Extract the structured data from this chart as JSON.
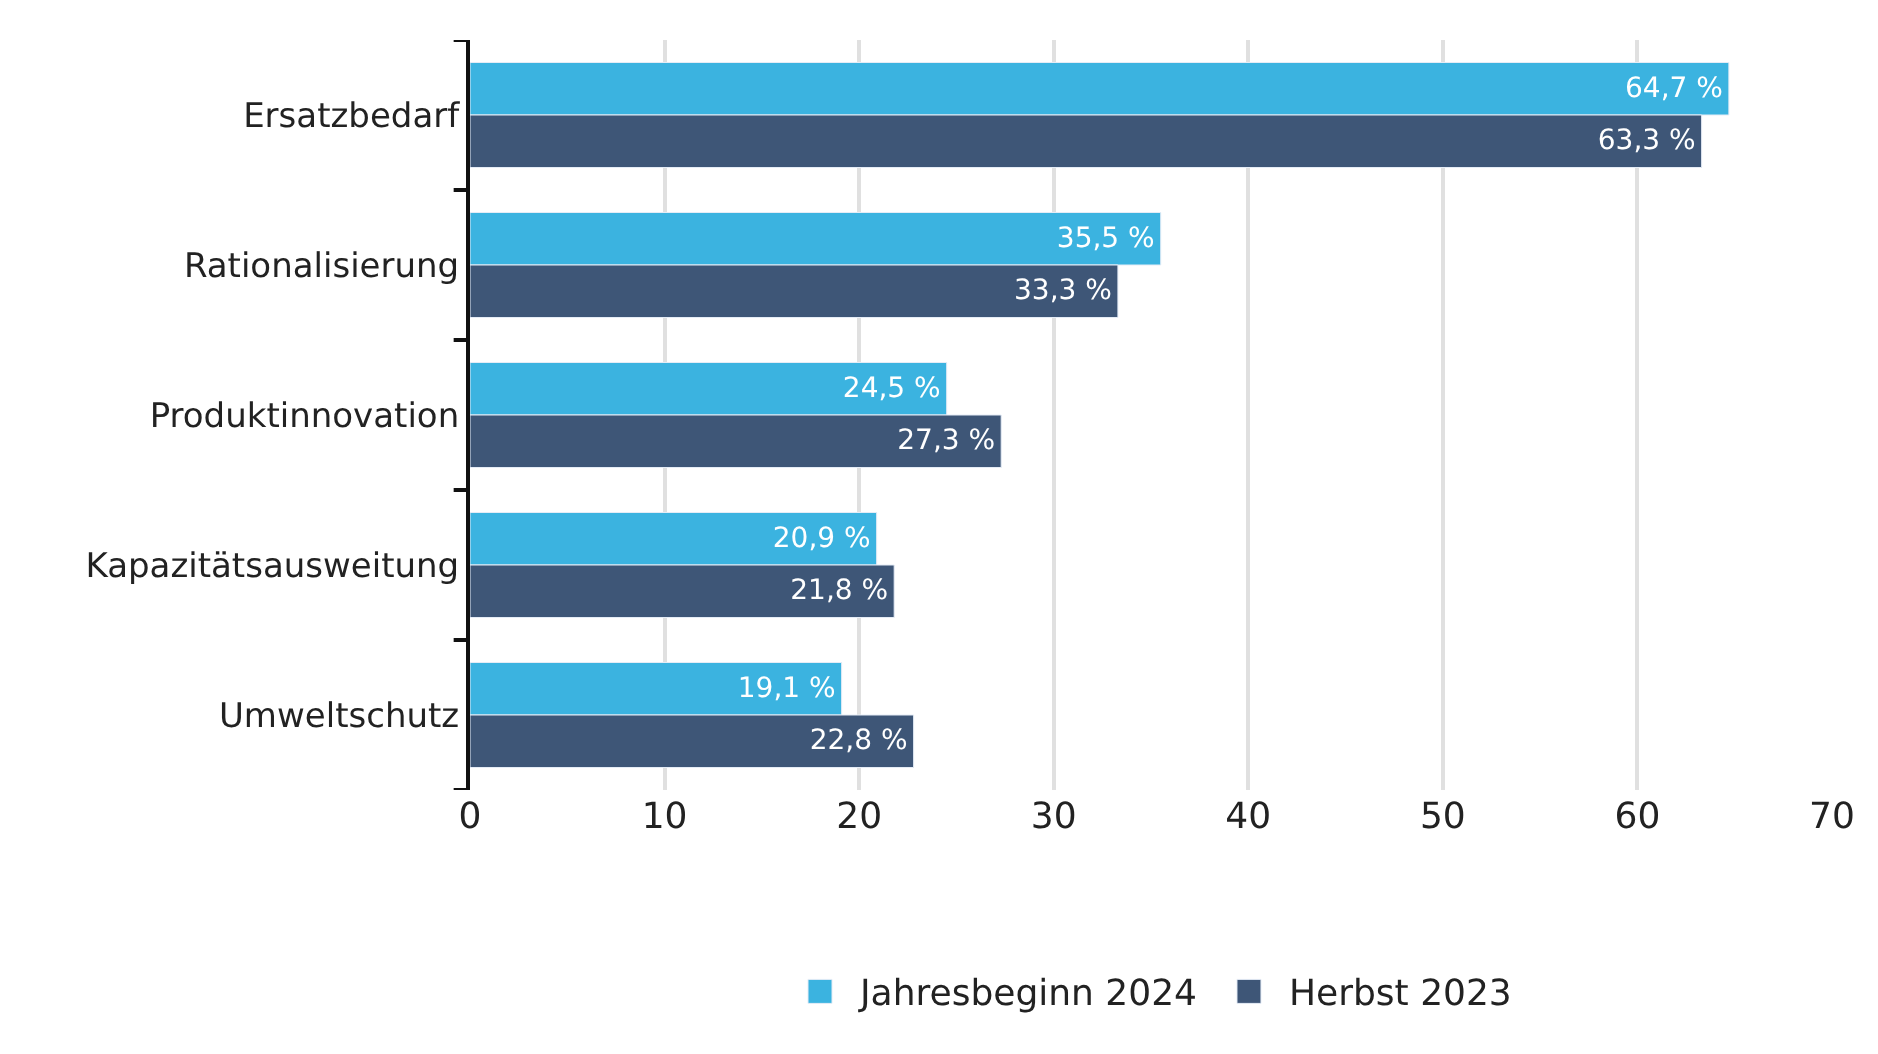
{
  "chart_data": {
    "type": "bar",
    "orientation": "horizontal",
    "categories": [
      "Ersatzbedarf",
      "Rationalisierung",
      "Produktinnovation",
      "Kapazitätsausweitung",
      "Umweltschutz"
    ],
    "series": [
      {
        "name": "Jahresbeginn 2024",
        "color": "#3bb3e0",
        "values": [
          64.7,
          35.5,
          24.5,
          20.9,
          19.1
        ],
        "value_labels": [
          "64,7 %",
          "35,5 %",
          "24,5 %",
          "20,9 %",
          "19,1 %"
        ]
      },
      {
        "name": "Herbst 2023",
        "color": "#3e5677",
        "values": [
          63.3,
          33.3,
          27.3,
          21.8,
          22.8
        ],
        "value_labels": [
          "63,3 %",
          "33,3 %",
          "27,3 %",
          "21,8 %",
          "22,8 %"
        ]
      }
    ],
    "xlim": [
      0,
      70
    ],
    "xticks": [
      0,
      10,
      20,
      30,
      40,
      50,
      60,
      70
    ],
    "grid": "x",
    "legend": "bottom"
  }
}
